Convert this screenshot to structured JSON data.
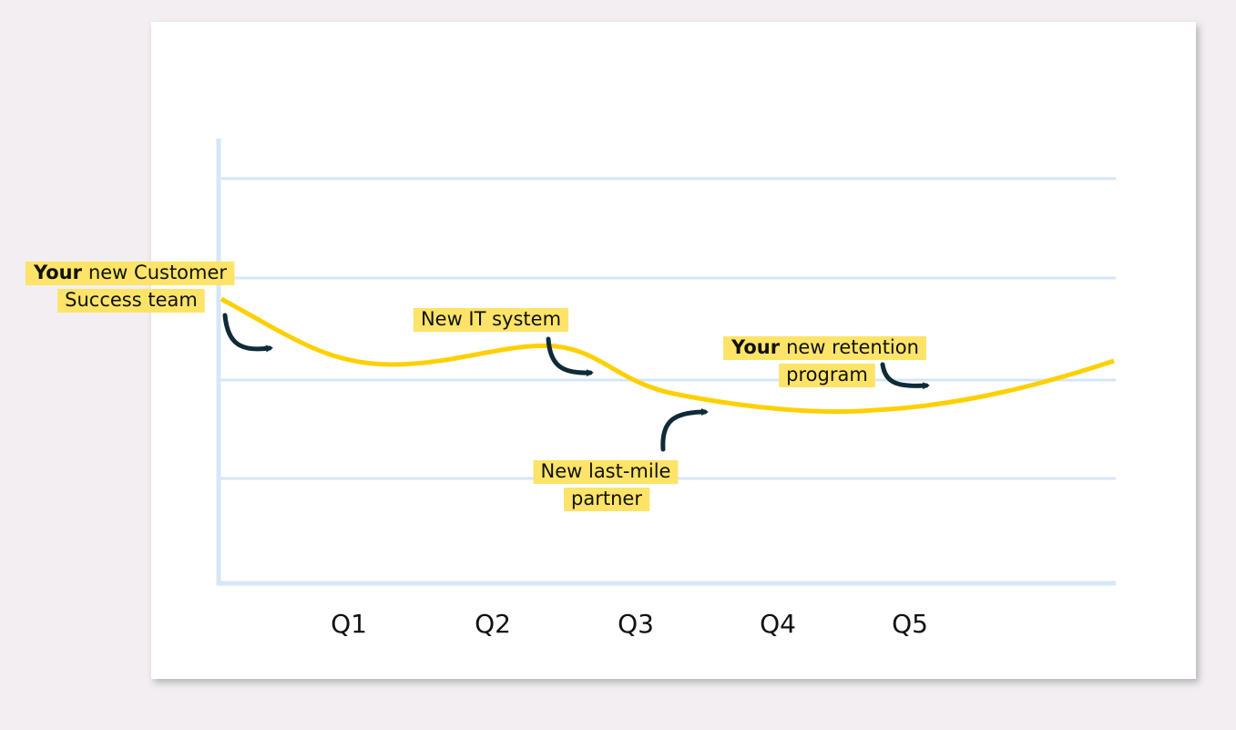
{
  "quarters": [
    "Q1",
    "Q2",
    "Q3",
    "Q4",
    "Q5"
  ],
  "annotations": [
    {
      "bold": "Your",
      "lines": [
        "new Customer",
        "Success team"
      ]
    },
    {
      "lines": [
        "New IT system"
      ]
    },
    {
      "lines": [
        "New last-mile",
        "partner"
      ]
    },
    {
      "bold": "Your",
      "lines": [
        "new retention",
        "program"
      ]
    }
  ]
}
